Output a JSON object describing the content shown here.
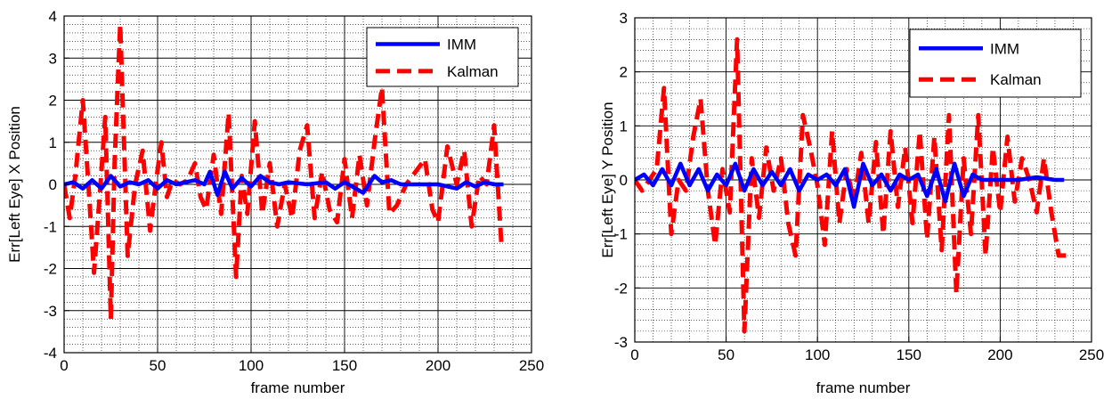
{
  "chart_data": [
    {
      "type": "line",
      "xlabel": "frame number",
      "ylabel": "Err[Left Eye] X Position",
      "xlim": [
        0,
        250
      ],
      "ylim": [
        -4,
        4
      ],
      "xticks": [
        "0",
        "50",
        "100",
        "150",
        "200",
        "250"
      ],
      "yticks": [
        "-4",
        "-3",
        "-2",
        "-1",
        "0",
        "1",
        "2",
        "3",
        "4"
      ],
      "grid": "major and minor",
      "legend_position": "top-right",
      "series": [
        {
          "name": "IMM",
          "color": "#0000ff",
          "style": "solid",
          "x": [
            0,
            5,
            10,
            15,
            20,
            25,
            30,
            35,
            40,
            45,
            50,
            55,
            60,
            65,
            70,
            75,
            78,
            82,
            86,
            90,
            95,
            100,
            105,
            110,
            115,
            120,
            130,
            140,
            145,
            150,
            160,
            166,
            170,
            175,
            180,
            190,
            200,
            210,
            215,
            220,
            225,
            230,
            235
          ],
          "y": [
            0.0,
            0.05,
            -0.1,
            0.1,
            -0.1,
            0.2,
            -0.05,
            0.05,
            0.0,
            0.1,
            -0.1,
            0.1,
            0.0,
            0.05,
            0.1,
            0.0,
            0.3,
            -0.25,
            0.3,
            -0.1,
            0.15,
            -0.05,
            0.2,
            0.05,
            0.0,
            0.05,
            0.0,
            0.05,
            -0.1,
            0.05,
            -0.2,
            0.2,
            0.05,
            0.1,
            0.0,
            0.0,
            0.0,
            -0.1,
            0.05,
            -0.05,
            0.05,
            0.0,
            0.0
          ]
        },
        {
          "name": "Kalman",
          "color": "#ff0000",
          "style": "dashed",
          "x": [
            0,
            3,
            6,
            10,
            13,
            16,
            19,
            22,
            25,
            27,
            30,
            34,
            38,
            42,
            46,
            49,
            52,
            55,
            58,
            62,
            66,
            70,
            73,
            76,
            80,
            84,
            88,
            92,
            95,
            98,
            102,
            106,
            110,
            114,
            118,
            122,
            126,
            130,
            134,
            138,
            142,
            146,
            150,
            154,
            158,
            162,
            166,
            170,
            174,
            178,
            183,
            188,
            193,
            197,
            200,
            205,
            210,
            214,
            218,
            222,
            226,
            230,
            234
          ],
          "y": [
            0.0,
            -0.8,
            0.2,
            2.0,
            0.0,
            -2.1,
            -0.3,
            1.6,
            -3.2,
            0.5,
            3.8,
            -1.7,
            0.0,
            0.8,
            -1.1,
            0.0,
            1.0,
            -0.3,
            0.1,
            0.0,
            0.1,
            0.5,
            -0.3,
            -0.6,
            0.7,
            -0.7,
            1.7,
            -2.2,
            0.2,
            -0.7,
            1.5,
            -0.7,
            0.5,
            -1.0,
            0.0,
            -0.8,
            0.8,
            1.4,
            -0.8,
            0.3,
            -0.6,
            -0.9,
            0.6,
            -0.8,
            0.7,
            -0.5,
            1.0,
            2.3,
            -0.7,
            -0.5,
            0.0,
            0.3,
            0.6,
            -0.6,
            -0.9,
            0.9,
            0.0,
            0.8,
            -1.0,
            0.2,
            0.0,
            1.4,
            -1.5
          ]
        }
      ]
    },
    {
      "type": "line",
      "xlabel": "frame number",
      "ylabel": "Err[Left Eye] Y Position",
      "xlim": [
        0,
        250
      ],
      "ylim": [
        -3,
        3
      ],
      "xticks": [
        "0",
        "50",
        "100",
        "150",
        "200",
        "250"
      ],
      "yticks": [
        "-3",
        "-2",
        "-1",
        "0",
        "1",
        "2",
        "3"
      ],
      "grid": "major and minor",
      "legend_position": "top-right",
      "series": [
        {
          "name": "IMM",
          "color": "#0000ff",
          "style": "solid",
          "x": [
            0,
            5,
            10,
            15,
            20,
            25,
            30,
            35,
            40,
            45,
            50,
            55,
            60,
            65,
            70,
            75,
            80,
            85,
            90,
            95,
            100,
            105,
            110,
            115,
            120,
            125,
            130,
            135,
            140,
            145,
            150,
            155,
            160,
            165,
            170,
            175,
            180,
            185,
            190,
            200,
            210,
            220,
            230,
            235
          ],
          "y": [
            0.0,
            0.1,
            -0.1,
            0.2,
            -0.1,
            0.3,
            -0.1,
            0.2,
            -0.2,
            0.1,
            -0.1,
            0.3,
            -0.2,
            0.2,
            -0.1,
            0.15,
            -0.1,
            0.2,
            -0.2,
            0.1,
            0.0,
            0.1,
            -0.1,
            0.2,
            -0.5,
            0.3,
            -0.1,
            0.1,
            -0.2,
            0.1,
            0.0,
            0.1,
            -0.3,
            0.2,
            -0.4,
            0.3,
            -0.3,
            0.1,
            0.0,
            0.0,
            0.0,
            0.05,
            0.0,
            0.0
          ]
        },
        {
          "name": "Kalman",
          "color": "#ff0000",
          "style": "dashed",
          "x": [
            0,
            4,
            8,
            12,
            16,
            20,
            24,
            28,
            32,
            36,
            40,
            44,
            48,
            52,
            56,
            60,
            64,
            68,
            72,
            76,
            80,
            84,
            88,
            92,
            96,
            100,
            104,
            108,
            112,
            116,
            120,
            124,
            128,
            132,
            136,
            140,
            144,
            148,
            152,
            156,
            160,
            164,
            168,
            172,
            176,
            180,
            184,
            188,
            192,
            196,
            200,
            204,
            208,
            212,
            216,
            220,
            224,
            228,
            232,
            236
          ],
          "y": [
            0.0,
            -0.2,
            0.0,
            0.2,
            1.7,
            -1.0,
            0.0,
            -0.2,
            0.8,
            1.5,
            -0.2,
            -1.2,
            0.2,
            -0.6,
            2.6,
            -2.8,
            0.4,
            -0.7,
            0.6,
            -0.2,
            0.4,
            -0.8,
            -1.4,
            1.2,
            0.6,
            -0.1,
            -1.2,
            0.9,
            -0.8,
            0.2,
            -0.4,
            0.5,
            -0.8,
            0.7,
            -1.0,
            0.9,
            -0.5,
            0.6,
            -0.8,
            0.9,
            -1.1,
            0.8,
            -1.3,
            1.2,
            -2.1,
            0.4,
            -1.0,
            1.2,
            -1.4,
            0.6,
            -0.6,
            0.8,
            -0.4,
            0.4,
            0.0,
            -0.6,
            0.4,
            -0.6,
            -1.4,
            -1.4
          ]
        }
      ]
    }
  ]
}
